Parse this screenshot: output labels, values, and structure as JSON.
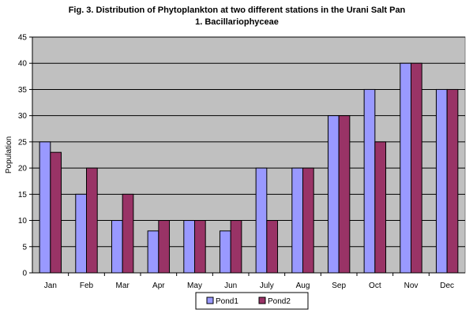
{
  "chart_data": {
    "type": "bar",
    "title": "Fig. 3. Distribution of Phytoplankton at two different stations in the Urani Salt Pan",
    "subtitle": "1. Bacillariophyceae",
    "xlabel": "",
    "ylabel": "Population",
    "ylim": [
      0,
      45
    ],
    "yticks": [
      0,
      5,
      10,
      15,
      20,
      25,
      30,
      35,
      40,
      45
    ],
    "grid": true,
    "legend_position": "bottom",
    "categories": [
      "Jan",
      "Feb",
      "Mar",
      "Apr",
      "May",
      "Jun",
      "July",
      "Aug",
      "Sep",
      "Oct",
      "Nov",
      "Dec"
    ],
    "series": [
      {
        "name": "Pond1",
        "color": "#9999ff",
        "values": [
          25,
          15,
          10,
          8,
          10,
          8,
          20,
          20,
          30,
          35,
          40,
          35
        ]
      },
      {
        "name": "Pond2",
        "color": "#993366",
        "values": [
          23,
          20,
          15,
          10,
          10,
          10,
          10,
          20,
          30,
          25,
          40,
          35
        ]
      }
    ],
    "plot_background": "#c0c0c0"
  }
}
